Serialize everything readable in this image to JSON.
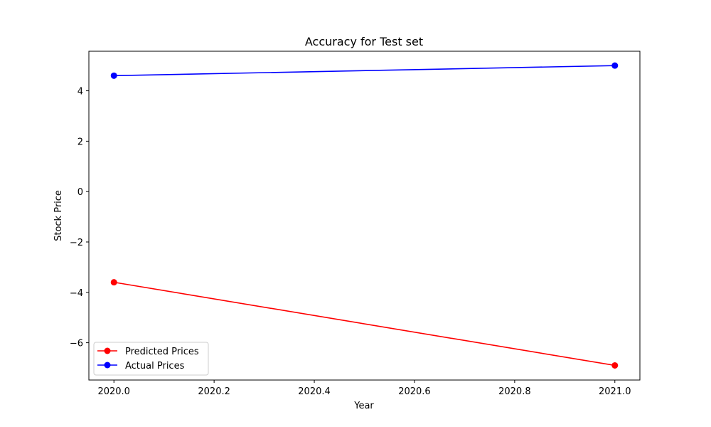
{
  "chart_data": {
    "type": "line",
    "title": "Accuracy for Test set",
    "xlabel": "Year",
    "ylabel": "Stock Price",
    "x": [
      2020.0,
      2021.0
    ],
    "xlim": [
      1999.95,
      2021.05
    ],
    "ylim": [
      -7.48,
      5.57
    ],
    "xticks": [
      "2020.0",
      "2020.2",
      "2020.4",
      "2020.6",
      "2020.8",
      "2021.0"
    ],
    "xtick_values": [
      2020.0,
      2020.2,
      2020.4,
      2020.6,
      2020.8,
      2021.0
    ],
    "yticks": [
      "−6",
      "−4",
      "−2",
      "0",
      "2",
      "4"
    ],
    "ytick_values": [
      -6,
      -4,
      -2,
      0,
      2,
      4
    ],
    "grid": false,
    "legend_position": "lower-left",
    "series": [
      {
        "name": "Predicted Prices",
        "values": [
          -3.6,
          -6.9
        ],
        "color": "#ff0000",
        "marker": "circle"
      },
      {
        "name": "Actual Prices",
        "values": [
          4.6,
          5.0
        ],
        "color": "#0000ff",
        "marker": "circle"
      }
    ]
  }
}
